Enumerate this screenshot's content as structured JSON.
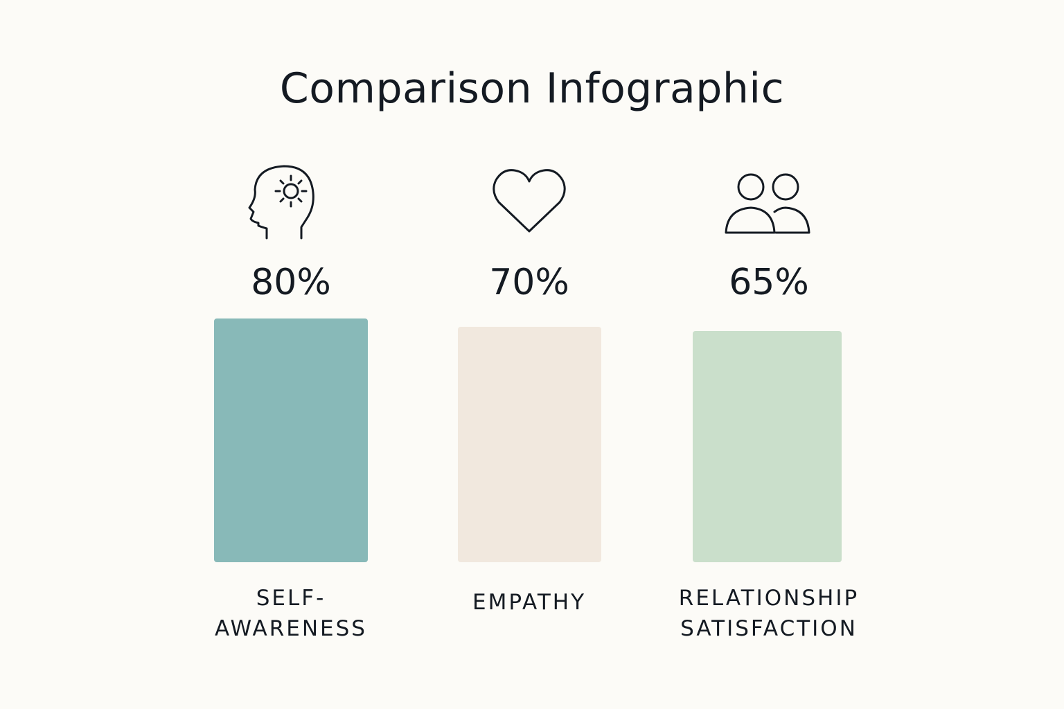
{
  "title": "Comparison Infographic",
  "chart_data": {
    "type": "bar",
    "categories": [
      "SELF-AWARENESS",
      "EMPATHY",
      "RELATIONSHIP SATISFACTION"
    ],
    "values": [
      80,
      70,
      65
    ],
    "value_labels": [
      "80%",
      "70%",
      "65%"
    ],
    "label_lines": [
      [
        "SELF-",
        "AWARENESS"
      ],
      [
        "EMPATHY"
      ],
      [
        "RELATIONSHIP",
        "SATISFACTION"
      ]
    ],
    "icons": [
      "head-sun-icon",
      "heart-icon",
      "people-icon"
    ],
    "colors": [
      "#88b9b8",
      "#f1e8de",
      "#cadfcb"
    ],
    "unit": "%"
  }
}
